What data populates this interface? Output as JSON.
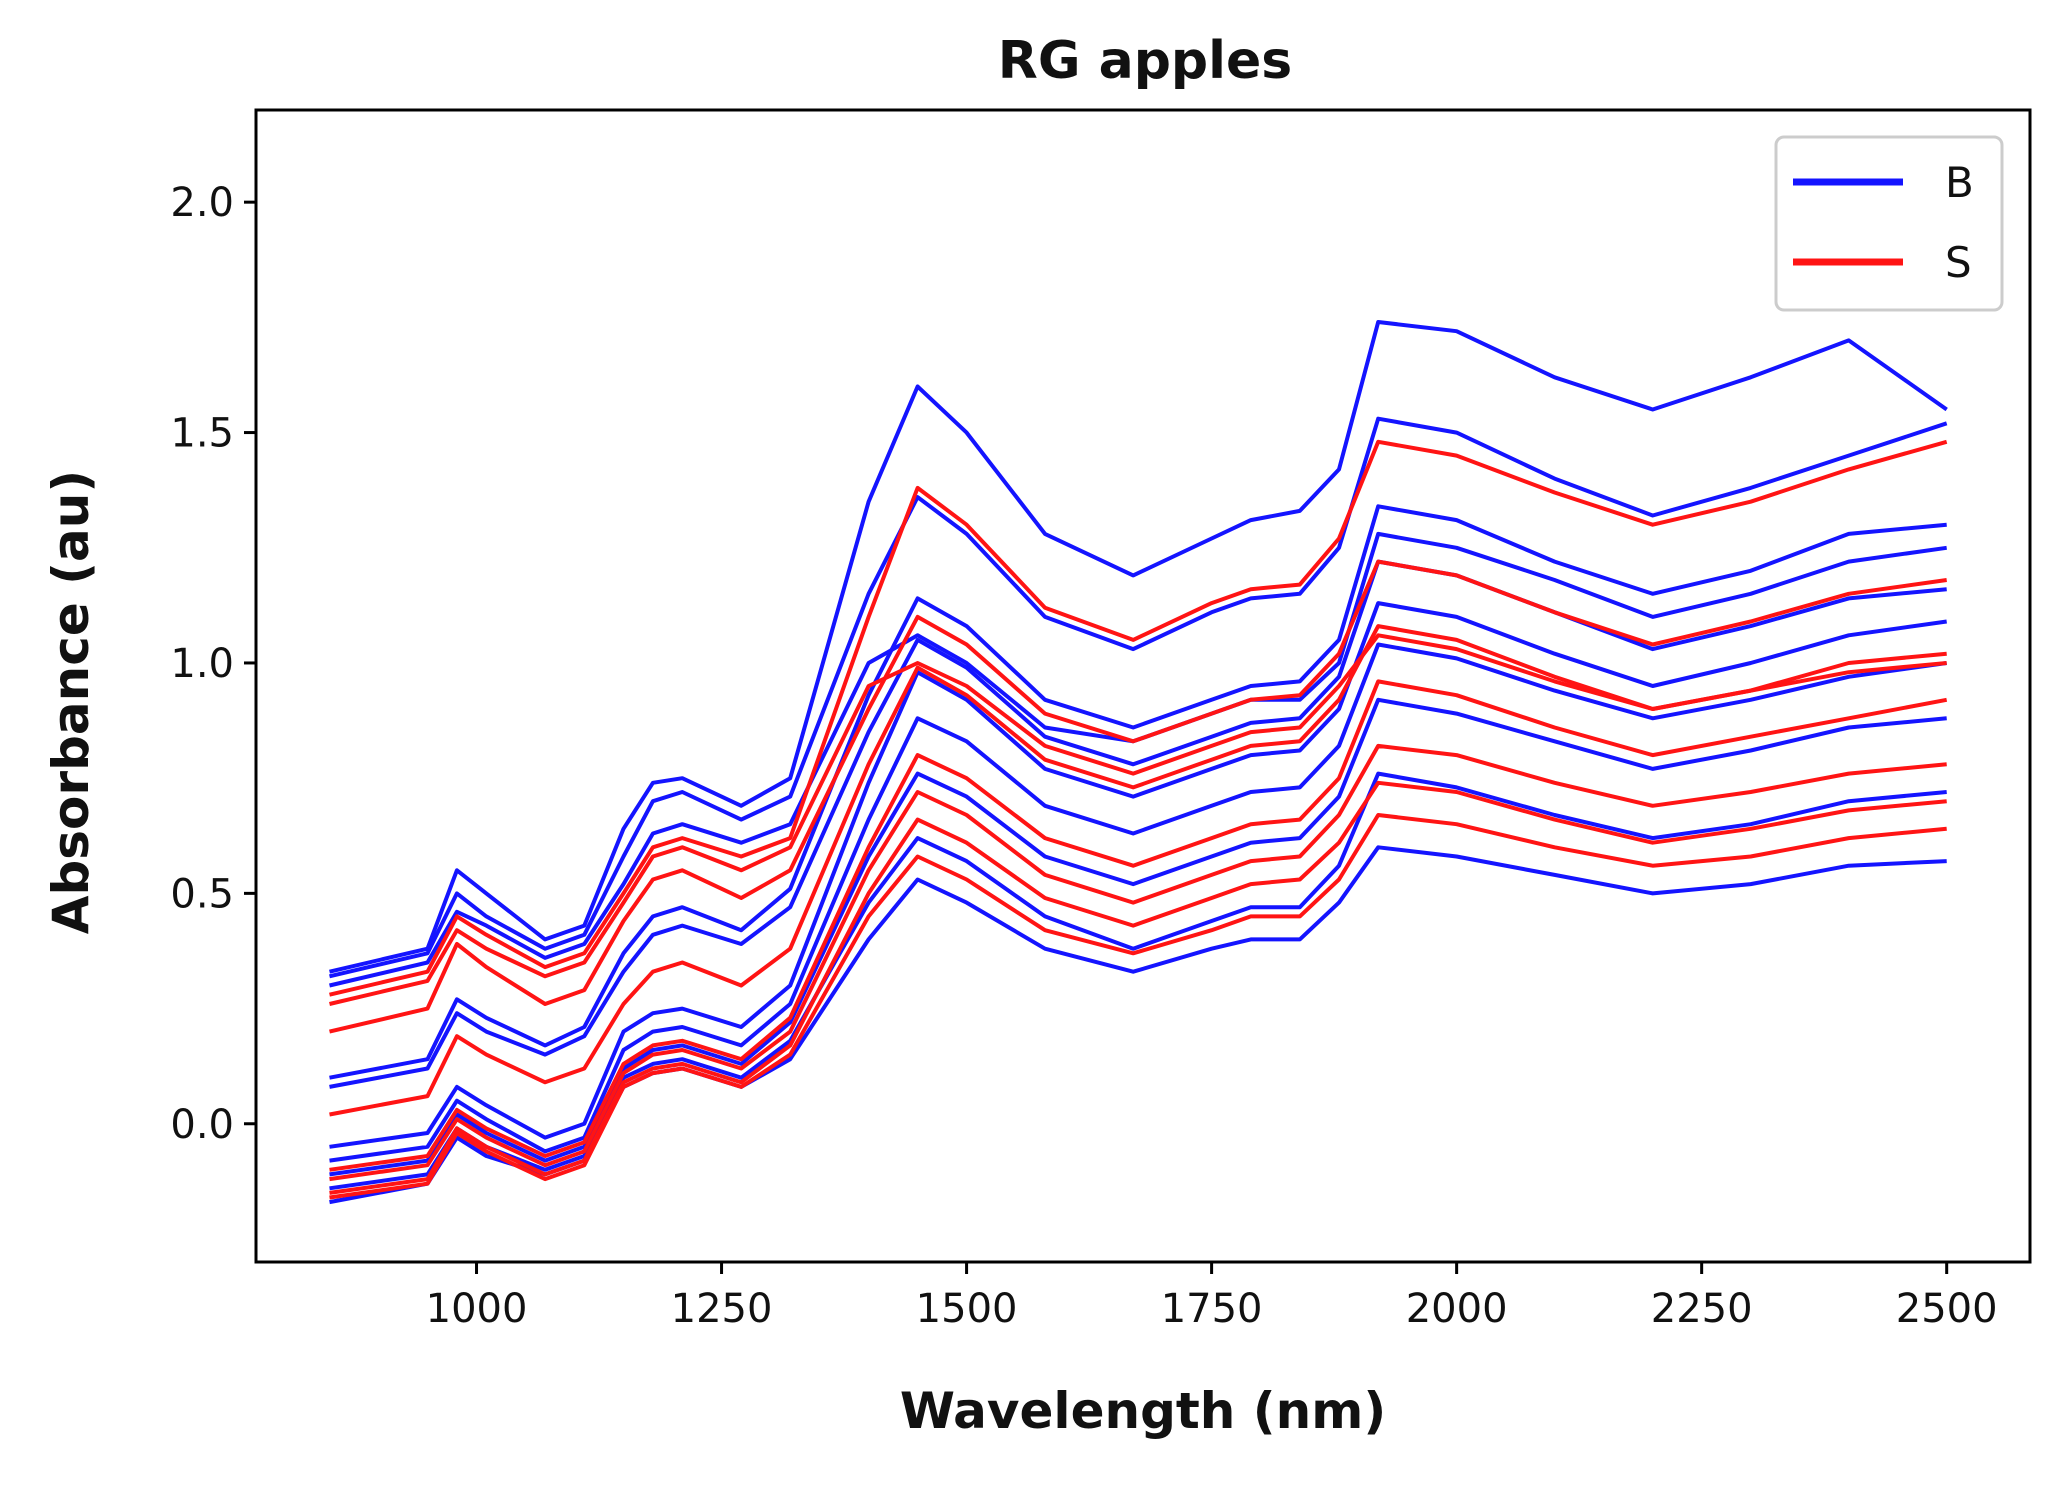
{
  "chart_data": {
    "type": "line",
    "title": "RG apples",
    "xlabel": "Wavelength (nm)",
    "ylabel": "Absorbance (au)",
    "xlim": [
      775,
      2585
    ],
    "ylim": [
      -0.3,
      2.2
    ],
    "xticks": [
      1000,
      1250,
      1500,
      1750,
      2000,
      2250,
      2500
    ],
    "xtick_labels": [
      "1000",
      "1250",
      "1500",
      "1750",
      "2000",
      "2250",
      "2500"
    ],
    "yticks": [
      0.0,
      0.5,
      1.0,
      1.5,
      2.0
    ],
    "ytick_labels": [
      "0.0",
      "0.5",
      "1.0",
      "1.5",
      "2.0"
    ],
    "grid": false,
    "legend": {
      "position": "top-right",
      "entries": [
        {
          "label": "B",
          "color": "#1414ff"
        },
        {
          "label": "S",
          "color": "#ff1414"
        }
      ]
    },
    "x": [
      850,
      950,
      980,
      1010,
      1070,
      1110,
      1150,
      1180,
      1210,
      1270,
      1320,
      1400,
      1450,
      1500,
      1580,
      1670,
      1750,
      1790,
      1840,
      1880,
      1920,
      2000,
      2100,
      2200,
      2300,
      2400,
      2500
    ],
    "series": [
      {
        "name": "B",
        "values": [
          0.3,
          0.35,
          0.46,
          0.43,
          0.36,
          0.39,
          0.52,
          0.63,
          0.65,
          0.61,
          0.65,
          1.0,
          1.06,
          1.0,
          0.86,
          0.83,
          0.89,
          0.92,
          0.92,
          1.0,
          1.28,
          1.25,
          1.18,
          1.1,
          1.15,
          1.22,
          1.25
        ]
      },
      {
        "name": "B",
        "values": [
          0.33,
          0.38,
          0.55,
          0.5,
          0.4,
          0.43,
          0.64,
          0.74,
          0.75,
          0.69,
          0.75,
          1.35,
          1.6,
          1.5,
          1.28,
          1.19,
          1.27,
          1.31,
          1.33,
          1.42,
          1.74,
          1.72,
          1.62,
          1.55,
          1.62,
          1.7,
          1.55
        ]
      },
      {
        "name": "B",
        "values": [
          0.32,
          0.37,
          0.5,
          0.45,
          0.38,
          0.41,
          0.58,
          0.7,
          0.72,
          0.66,
          0.71,
          1.15,
          1.36,
          1.28,
          1.1,
          1.03,
          1.11,
          1.14,
          1.15,
          1.25,
          1.53,
          1.5,
          1.4,
          1.32,
          1.38,
          1.45,
          1.52
        ]
      },
      {
        "name": "B",
        "values": [
          0.1,
          0.14,
          0.27,
          0.23,
          0.17,
          0.21,
          0.37,
          0.45,
          0.47,
          0.42,
          0.51,
          0.93,
          1.14,
          1.08,
          0.92,
          0.86,
          0.92,
          0.95,
          0.96,
          1.05,
          1.34,
          1.31,
          1.22,
          1.15,
          1.2,
          1.28,
          1.3
        ]
      },
      {
        "name": "B",
        "values": [
          0.08,
          0.12,
          0.24,
          0.2,
          0.15,
          0.19,
          0.33,
          0.41,
          0.43,
          0.39,
          0.47,
          0.85,
          1.05,
          0.99,
          0.84,
          0.78,
          0.84,
          0.87,
          0.88,
          0.97,
          1.22,
          1.19,
          1.11,
          1.03,
          1.08,
          1.14,
          1.16
        ]
      },
      {
        "name": "B",
        "values": [
          -0.05,
          -0.02,
          0.08,
          0.04,
          -0.03,
          0.0,
          0.2,
          0.24,
          0.25,
          0.21,
          0.3,
          0.74,
          0.98,
          0.92,
          0.77,
          0.71,
          0.77,
          0.8,
          0.81,
          0.9,
          1.13,
          1.1,
          1.02,
          0.95,
          1.0,
          1.06,
          1.09
        ]
      },
      {
        "name": "B",
        "values": [
          -0.08,
          -0.05,
          0.05,
          0.01,
          -0.06,
          -0.03,
          0.16,
          0.2,
          0.21,
          0.17,
          0.26,
          0.66,
          0.88,
          0.83,
          0.69,
          0.63,
          0.69,
          0.72,
          0.73,
          0.82,
          1.04,
          1.01,
          0.94,
          0.88,
          0.92,
          0.97,
          1.0
        ]
      },
      {
        "name": "B",
        "values": [
          -0.11,
          -0.08,
          0.02,
          -0.02,
          -0.08,
          -0.05,
          0.12,
          0.16,
          0.17,
          0.13,
          0.22,
          0.58,
          0.76,
          0.71,
          0.58,
          0.52,
          0.58,
          0.61,
          0.62,
          0.71,
          0.92,
          0.89,
          0.83,
          0.77,
          0.81,
          0.86,
          0.88
        ]
      },
      {
        "name": "B",
        "values": [
          -0.14,
          -0.11,
          -0.01,
          -0.05,
          -0.1,
          -0.07,
          0.1,
          0.13,
          0.14,
          0.1,
          0.18,
          0.48,
          0.62,
          0.57,
          0.45,
          0.38,
          0.44,
          0.47,
          0.47,
          0.56,
          0.76,
          0.73,
          0.67,
          0.62,
          0.65,
          0.7,
          0.72
        ]
      },
      {
        "name": "B",
        "values": [
          -0.17,
          -0.13,
          -0.03,
          -0.07,
          -0.11,
          -0.08,
          0.08,
          0.11,
          0.12,
          0.08,
          0.14,
          0.4,
          0.53,
          0.48,
          0.38,
          0.33,
          0.38,
          0.4,
          0.4,
          0.48,
          0.6,
          0.58,
          0.54,
          0.5,
          0.52,
          0.56,
          0.57
        ]
      },
      {
        "name": "S",
        "values": [
          0.28,
          0.33,
          0.45,
          0.41,
          0.34,
          0.37,
          0.5,
          0.6,
          0.62,
          0.58,
          0.62,
          1.1,
          1.38,
          1.3,
          1.12,
          1.05,
          1.13,
          1.16,
          1.17,
          1.27,
          1.48,
          1.45,
          1.37,
          1.3,
          1.35,
          1.42,
          1.48
        ]
      },
      {
        "name": "S",
        "values": [
          0.26,
          0.31,
          0.42,
          0.38,
          0.32,
          0.35,
          0.48,
          0.58,
          0.6,
          0.55,
          0.6,
          0.95,
          1.0,
          0.95,
          0.82,
          0.76,
          0.82,
          0.85,
          0.86,
          0.95,
          1.06,
          1.03,
          0.96,
          0.9,
          0.94,
          1.0,
          1.02
        ]
      },
      {
        "name": "S",
        "values": [
          0.2,
          0.25,
          0.39,
          0.34,
          0.26,
          0.29,
          0.44,
          0.53,
          0.55,
          0.49,
          0.55,
          0.9,
          1.1,
          1.04,
          0.89,
          0.83,
          0.89,
          0.92,
          0.93,
          1.02,
          1.22,
          1.19,
          1.11,
          1.04,
          1.09,
          1.15,
          1.18
        ]
      },
      {
        "name": "S",
        "values": [
          0.02,
          0.06,
          0.19,
          0.15,
          0.09,
          0.12,
          0.26,
          0.33,
          0.35,
          0.3,
          0.38,
          0.78,
          0.99,
          0.93,
          0.79,
          0.73,
          0.79,
          0.82,
          0.83,
          0.92,
          1.08,
          1.05,
          0.97,
          0.9,
          0.94,
          0.98,
          1.0
        ]
      },
      {
        "name": "S",
        "values": [
          -0.1,
          -0.07,
          0.03,
          -0.01,
          -0.07,
          -0.04,
          0.13,
          0.17,
          0.18,
          0.14,
          0.23,
          0.6,
          0.8,
          0.75,
          0.62,
          0.56,
          0.62,
          0.65,
          0.66,
          0.75,
          0.96,
          0.93,
          0.86,
          0.8,
          0.84,
          0.88,
          0.92
        ]
      },
      {
        "name": "S",
        "values": [
          -0.12,
          -0.09,
          0.01,
          -0.03,
          -0.09,
          -0.06,
          0.11,
          0.15,
          0.16,
          0.12,
          0.2,
          0.55,
          0.72,
          0.67,
          0.54,
          0.48,
          0.54,
          0.57,
          0.58,
          0.67,
          0.82,
          0.8,
          0.74,
          0.69,
          0.72,
          0.76,
          0.78
        ]
      },
      {
        "name": "S",
        "values": [
          -0.15,
          -0.12,
          -0.01,
          -0.05,
          -0.11,
          -0.08,
          0.09,
          0.12,
          0.13,
          0.09,
          0.17,
          0.5,
          0.66,
          0.61,
          0.49,
          0.43,
          0.49,
          0.52,
          0.53,
          0.61,
          0.74,
          0.72,
          0.66,
          0.61,
          0.64,
          0.68,
          0.7
        ]
      },
      {
        "name": "S",
        "values": [
          -0.16,
          -0.13,
          -0.02,
          -0.06,
          -0.12,
          -0.09,
          0.08,
          0.11,
          0.12,
          0.08,
          0.15,
          0.45,
          0.58,
          0.53,
          0.42,
          0.37,
          0.42,
          0.45,
          0.45,
          0.53,
          0.67,
          0.65,
          0.6,
          0.56,
          0.58,
          0.62,
          0.64
        ]
      }
    ]
  }
}
